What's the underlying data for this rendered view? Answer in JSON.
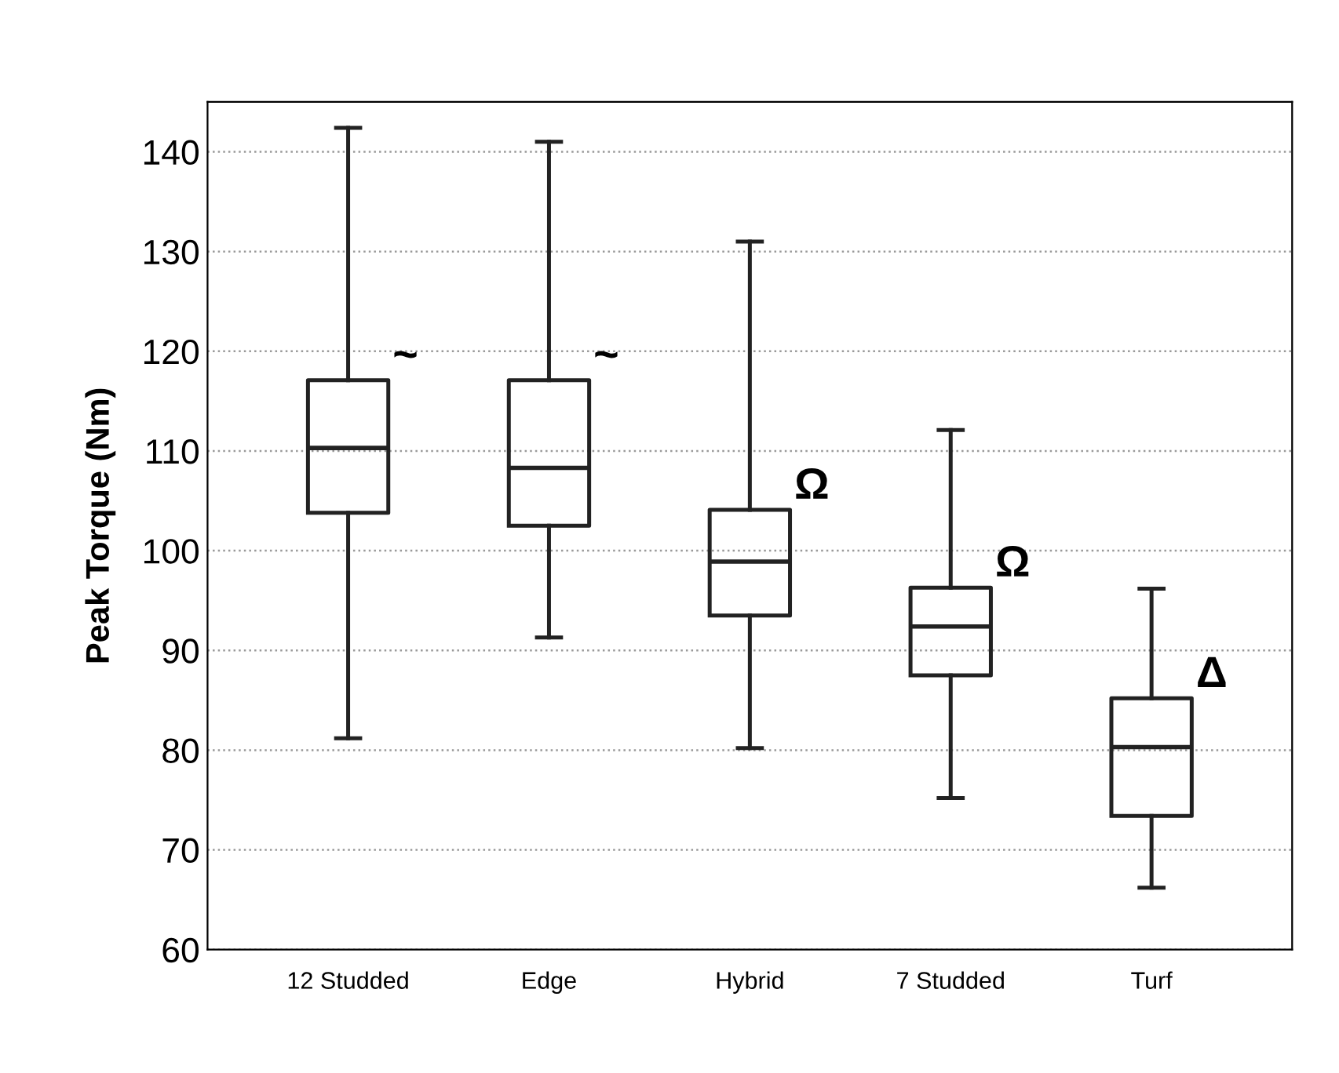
{
  "chart_data": {
    "type": "box",
    "ylabel": "Peak Torque (Nm)",
    "categories": [
      "12 Studded",
      "Edge",
      "Hybrid",
      "7 Studded",
      "Turf"
    ],
    "boxes": [
      {
        "low": 81.2,
        "q1": 103.8,
        "median": 110.3,
        "q3": 117.1,
        "high": 142.4
      },
      {
        "low": 91.3,
        "q1": 102.5,
        "median": 108.3,
        "q3": 117.1,
        "high": 141
      },
      {
        "low": 80.2,
        "q1": 93.5,
        "median": 98.9,
        "q3": 104.1,
        "high": 131
      },
      {
        "low": 75.2,
        "q1": 87.5,
        "median": 92.4,
        "q3": 96.3,
        "high": 112.1
      },
      {
        "low": 66.2,
        "q1": 73.4,
        "median": 80.3,
        "q3": 85.2,
        "high": 96.2
      }
    ],
    "color": "#222222",
    "annotations": [
      {
        "text": "~",
        "x": "12 Studded",
        "y": 117.1
      },
      {
        "text": "~",
        "x": "Edge",
        "y": 117.1
      },
      {
        "text": "Ω",
        "x": "Hybrid",
        "y": 104.1
      },
      {
        "text": "Ω",
        "x": "7 Studded",
        "y": 96.3
      },
      {
        "text": "Δ",
        "x": "Turf",
        "y": 85.2
      }
    ],
    "ylim": [
      60,
      145
    ],
    "yticks": [
      60,
      70,
      80,
      90,
      100,
      110,
      120,
      130,
      140
    ],
    "grid": "y"
  }
}
